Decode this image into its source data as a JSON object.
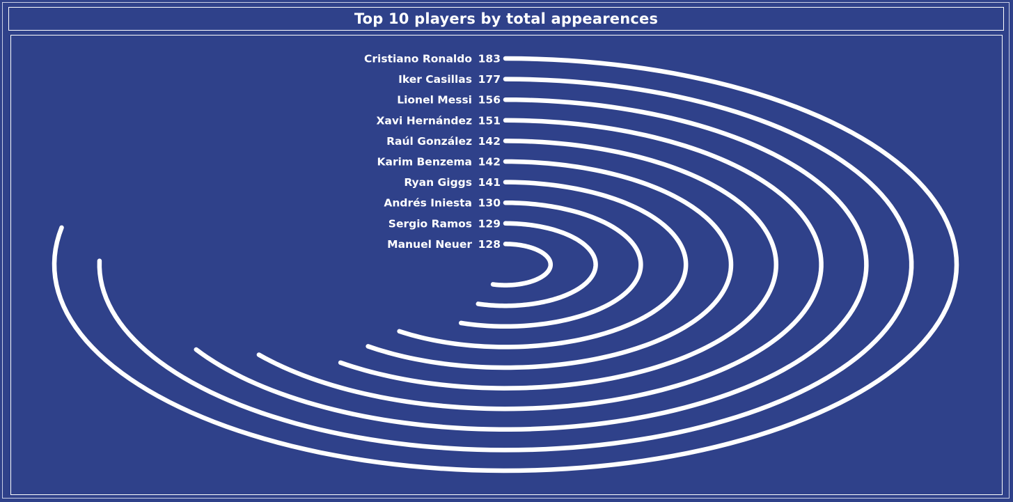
{
  "title": "Top 10 players by total appearences",
  "colors": {
    "background": "#2f418a",
    "arc": "#ffffff",
    "text": "#ffffff"
  },
  "chart_data": {
    "type": "radial-bar",
    "title": "Top 10 players by total appearences",
    "categories": [
      "Cristiano Ronaldo",
      "Iker Casillas",
      "Lionel Messi",
      "Xavi Hernández",
      "Raúl González",
      "Karim Benzema",
      "Ryan Giggs",
      "Andrés Iniesta",
      "Sergio Ramos",
      "Manuel Neuer"
    ],
    "values": [
      183,
      177,
      156,
      151,
      142,
      142,
      141,
      130,
      129,
      128
    ],
    "max_value": 235
  }
}
